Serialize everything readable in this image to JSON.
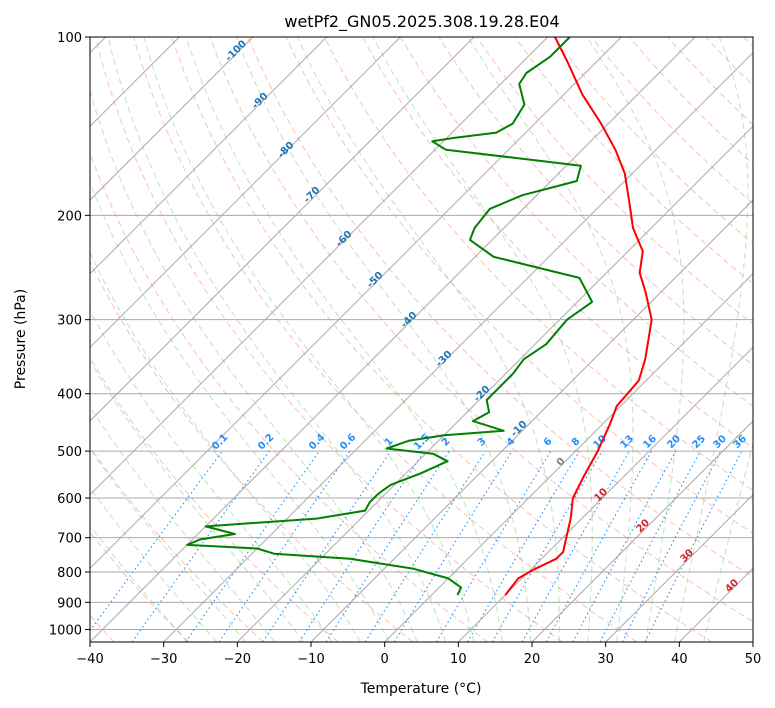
{
  "chart_data": {
    "type": "line",
    "title": "wetPf2_GN05.2025.308.19.28.E04",
    "xlabel": "Temperature (°C)",
    "ylabel": "Pressure (hPa)",
    "xlim": [
      -40,
      50
    ],
    "ylim": [
      1050,
      100
    ],
    "y_scale": "log",
    "grid": true,
    "x_ticks": [
      -40,
      -30,
      -20,
      -10,
      0,
      10,
      20,
      30,
      40,
      50
    ],
    "y_ticks": [
      100,
      200,
      300,
      400,
      500,
      600,
      700,
      800,
      900,
      1000
    ],
    "skew": 45,
    "series": [
      {
        "color": "#ff0000",
        "values": [
          [
            875,
            10.0
          ],
          [
            820,
            9.5
          ],
          [
            790,
            10.5
          ],
          [
            760,
            12.0
          ],
          [
            740,
            12.0
          ],
          [
            700,
            10.5
          ],
          [
            650,
            8.5
          ],
          [
            600,
            6.0
          ],
          [
            550,
            4.5
          ],
          [
            500,
            3.0
          ],
          [
            450,
            1.0
          ],
          [
            420,
            -0.5
          ],
          [
            380,
            -1.0
          ],
          [
            350,
            -3.0
          ],
          [
            300,
            -7.5
          ],
          [
            270,
            -12.0
          ],
          [
            250,
            -15.5
          ],
          [
            230,
            -18.0
          ],
          [
            210,
            -22.5
          ],
          [
            190,
            -26.5
          ],
          [
            170,
            -31.0
          ],
          [
            155,
            -35.5
          ],
          [
            140,
            -41.0
          ],
          [
            125,
            -47.5
          ],
          [
            110,
            -54.0
          ],
          [
            100,
            -59.0
          ]
        ]
      },
      {
        "color": "#008000",
        "values": [
          [
            875,
            3.5
          ],
          [
            850,
            3.0
          ],
          [
            820,
            0.0
          ],
          [
            790,
            -6.0
          ],
          [
            760,
            -16.0
          ],
          [
            745,
            -27.0
          ],
          [
            730,
            -30.0
          ],
          [
            720,
            -40.0
          ],
          [
            705,
            -39.0
          ],
          [
            690,
            -35.0
          ],
          [
            670,
            -40.0
          ],
          [
            650,
            -26.0
          ],
          [
            630,
            -20.5
          ],
          [
            610,
            -21.0
          ],
          [
            590,
            -21.0
          ],
          [
            570,
            -20.5
          ],
          [
            545,
            -18.0
          ],
          [
            520,
            -16.0
          ],
          [
            505,
            -19.0
          ],
          [
            495,
            -26.0
          ],
          [
            480,
            -24.0
          ],
          [
            470,
            -20.0
          ],
          [
            462,
            -12.5
          ],
          [
            445,
            -18.0
          ],
          [
            430,
            -17.0
          ],
          [
            410,
            -19.0
          ],
          [
            390,
            -19.0
          ],
          [
            370,
            -19.0
          ],
          [
            350,
            -19.5
          ],
          [
            330,
            -18.5
          ],
          [
            300,
            -19.0
          ],
          [
            280,
            -18.0
          ],
          [
            255,
            -23.0
          ],
          [
            235,
            -37.5
          ],
          [
            220,
            -43.0
          ],
          [
            210,
            -44.0
          ],
          [
            195,
            -44.5
          ],
          [
            185,
            -42.0
          ],
          [
            175,
            -36.5
          ],
          [
            165,
            -38.0
          ],
          [
            160,
            -48.0
          ],
          [
            155,
            -58.5
          ],
          [
            150,
            -61.5
          ],
          [
            148,
            -59.0
          ],
          [
            145,
            -54.0
          ],
          [
            140,
            -53.0
          ],
          [
            130,
            -54.0
          ],
          [
            120,
            -57.5
          ],
          [
            115,
            -58.0
          ],
          [
            108,
            -57.0
          ],
          [
            100,
            -57.0
          ]
        ]
      }
    ],
    "dry_adiabat_labels": [
      -100,
      -90,
      -80,
      -70,
      -60,
      -50,
      -40,
      -30,
      -20,
      -10
    ],
    "mixing_ratio_labels": [
      0.1,
      0.2,
      0.4,
      0.6,
      1,
      1.5,
      2,
      3,
      4,
      6,
      8,
      10,
      13,
      16,
      20,
      25,
      30,
      36
    ],
    "moist_adiabat_labels": [
      0,
      10,
      20,
      30,
      40
    ]
  }
}
